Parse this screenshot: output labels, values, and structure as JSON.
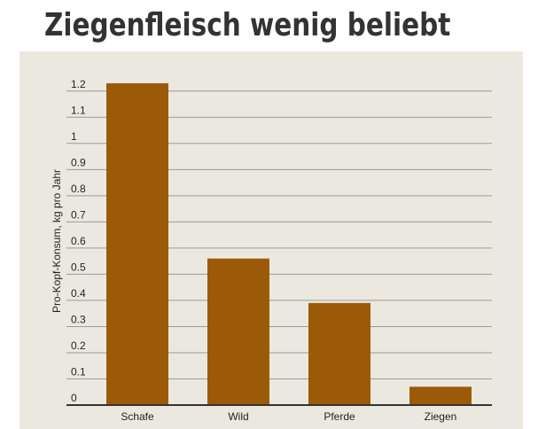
{
  "chart_data": {
    "type": "bar",
    "title": "Ziegenfleisch wenig beliebt",
    "y_label": "Pro-Kopf-Konsum, kg pro Jahr",
    "categories": [
      "Schafe",
      "Wild",
      "Pferde",
      "Ziegen"
    ],
    "values": [
      1.23,
      0.56,
      0.39,
      0.07
    ],
    "color": "#9c5a08",
    "ylim": [
      0,
      1.25
    ],
    "yticks": [
      0,
      0.1,
      0.2,
      0.3,
      0.4,
      0.5,
      0.6,
      0.7,
      0.8,
      0.9,
      1,
      1.1,
      1.2
    ],
    "grid": true
  }
}
